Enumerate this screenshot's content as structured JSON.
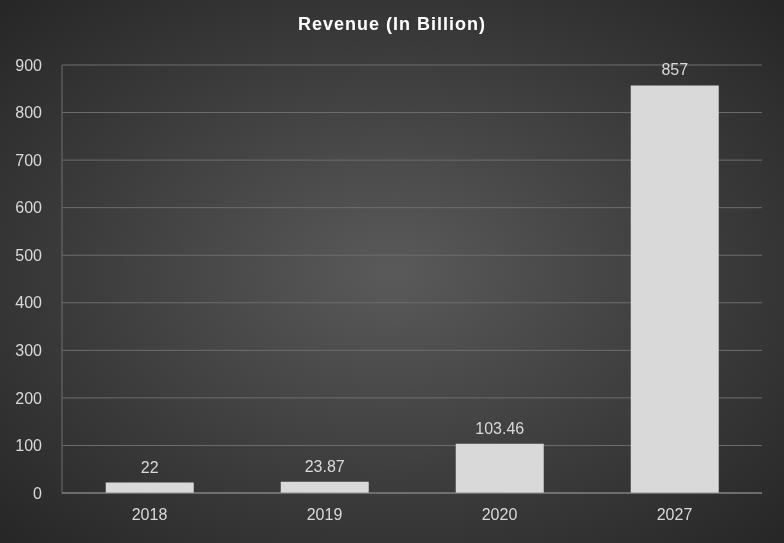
{
  "chart_data": {
    "type": "bar",
    "title": "Revenue (In Billion)",
    "categories": [
      "2018",
      "2019",
      "2020",
      "2027"
    ],
    "values": [
      22,
      23.87,
      103.46,
      857
    ],
    "color": "#d9d9d9",
    "ylim": [
      0,
      900
    ],
    "yticks": [
      0,
      100,
      200,
      300,
      400,
      500,
      600,
      700,
      800,
      900
    ],
    "grid": true,
    "data_labels": true
  }
}
